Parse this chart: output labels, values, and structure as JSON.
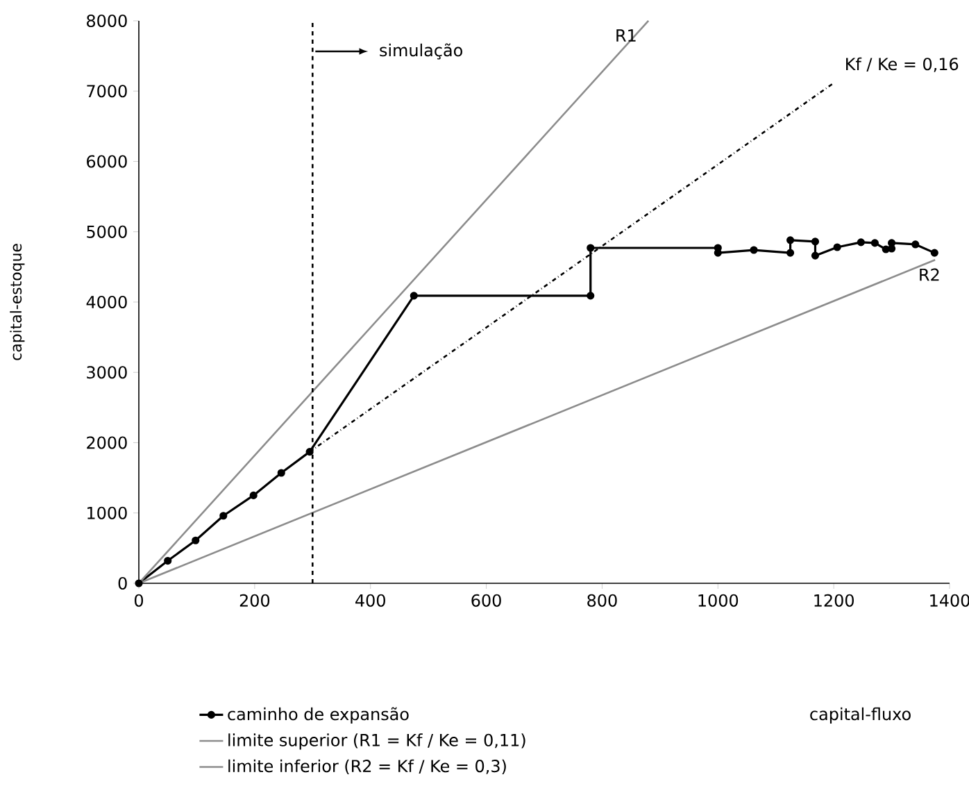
{
  "chart_data": {
    "type": "line",
    "ylabel": "capital-estoque",
    "xlim": [
      0,
      1400
    ],
    "ylim": [
      0,
      8000
    ],
    "xticks": [
      0,
      200,
      400,
      600,
      800,
      1000,
      1200,
      1400
    ],
    "yticks": [
      0,
      1000,
      2000,
      3000,
      4000,
      5000,
      6000,
      7000,
      8000
    ],
    "grid": false,
    "legend": "bottom",
    "series": [
      {
        "name": "caminho de expansão",
        "color": "#000000",
        "marker": "circle",
        "line_style": "solid",
        "x": [
          0,
          50,
          98,
          146,
          198,
          246,
          295,
          475,
          780,
          780,
          1000,
          1000,
          1062,
          1125,
          1125,
          1168,
          1168,
          1206,
          1247,
          1271,
          1290,
          1300,
          1300,
          1341,
          1374
        ],
        "values": [
          0,
          320,
          610,
          960,
          1250,
          1570,
          1870,
          4090,
          4090,
          4770,
          4770,
          4700,
          4740,
          4700,
          4880,
          4860,
          4660,
          4780,
          4850,
          4840,
          4750,
          4760,
          4840,
          4820,
          4700
        ]
      },
      {
        "name": "limite superior (R1 = Kf / Ke = 0,11)",
        "color": "#8c8c8c",
        "marker": "none",
        "line_style": "solid",
        "x": [
          0,
          880
        ],
        "values": [
          0,
          8000
        ]
      },
      {
        "name": "limite inferior (R2 = Kf / Ke = 0,3)",
        "color": "#8c8c8c",
        "marker": "none",
        "line_style": "solid",
        "x": [
          0,
          1375
        ],
        "values": [
          0,
          4600
        ]
      },
      {
        "color": "#000000",
        "marker": "none",
        "line_style": "dashdot",
        "x": [
          295,
          1199
        ],
        "values": [
          1870,
          7110
        ]
      }
    ],
    "ref_lines": [
      {
        "axis": "x",
        "value": 300,
        "label": "simulação",
        "color": "#000000",
        "line_style": "dashed"
      }
    ],
    "annotations": [
      {
        "text": "R1",
        "x": 880,
        "y": 8000
      },
      {
        "text": "Kf / Ke = 0,16",
        "x": 1199,
        "y": 7110
      },
      {
        "text": "R2",
        "x": 1375,
        "y": 4600
      },
      "capital-fluxo"
    ]
  }
}
